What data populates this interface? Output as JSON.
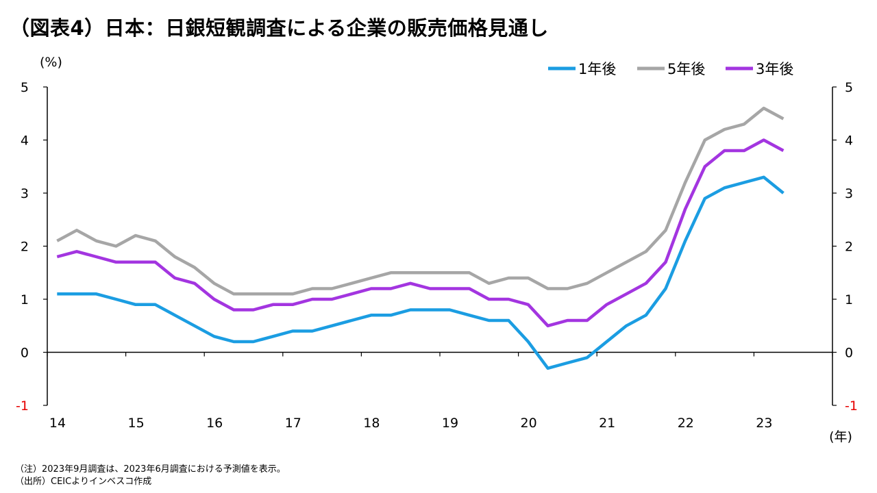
{
  "title": "（図表4）日本：日銀短観調査による企業の販売価格見通し",
  "notes": {
    "note": "（注）2023年9月調査は、2023年6月調査における予測値を表示。",
    "source": "（出所）CEICよりインベスコ作成"
  },
  "chart_data": {
    "type": "line",
    "title": "（図表4）日本：日銀短観調査による企業の販売価格見通し",
    "ylabel": "(%)",
    "xlabel": "(年)",
    "ylim": [
      -1,
      5
    ],
    "yticks": [
      -1,
      0,
      1,
      2,
      3,
      4,
      5
    ],
    "negative_tick_color": "#E60000",
    "x_start": 2014.0,
    "x_step": 0.25,
    "xlim": [
      2014.0,
      2024.0
    ],
    "xtick_labels": [
      "14",
      "15",
      "16",
      "17",
      "18",
      "19",
      "20",
      "21",
      "22",
      "23"
    ],
    "legend_position": "top-right",
    "grid": false,
    "series": [
      {
        "name": "1年後",
        "color": "#1B9DE2",
        "values": [
          1.1,
          1.1,
          1.1,
          1.0,
          0.9,
          0.9,
          0.7,
          0.5,
          0.3,
          0.2,
          0.2,
          0.3,
          0.4,
          0.4,
          0.5,
          0.6,
          0.7,
          0.7,
          0.8,
          0.8,
          0.8,
          0.7,
          0.6,
          0.6,
          0.2,
          -0.3,
          -0.2,
          -0.1,
          0.2,
          0.5,
          0.7,
          1.2,
          2.1,
          2.9,
          3.1,
          3.2,
          3.3,
          3.0
        ]
      },
      {
        "name": "5年後",
        "color": "#A6A6A6",
        "values": [
          2.1,
          2.3,
          2.1,
          2.0,
          2.2,
          2.1,
          1.8,
          1.6,
          1.3,
          1.1,
          1.1,
          1.1,
          1.1,
          1.2,
          1.2,
          1.3,
          1.4,
          1.5,
          1.5,
          1.5,
          1.5,
          1.5,
          1.3,
          1.4,
          1.4,
          1.2,
          1.2,
          1.3,
          1.5,
          1.7,
          1.9,
          2.3,
          3.2,
          4.0,
          4.2,
          4.3,
          4.6,
          4.4
        ]
      },
      {
        "name": "3年後",
        "color": "#A335E0",
        "values": [
          1.8,
          1.9,
          1.8,
          1.7,
          1.7,
          1.7,
          1.4,
          1.3,
          1.0,
          0.8,
          0.8,
          0.9,
          0.9,
          1.0,
          1.0,
          1.1,
          1.2,
          1.2,
          1.3,
          1.2,
          1.2,
          1.2,
          1.0,
          1.0,
          0.9,
          0.5,
          0.6,
          0.6,
          0.9,
          1.1,
          1.3,
          1.7,
          2.7,
          3.5,
          3.8,
          3.8,
          4.0,
          3.8
        ]
      }
    ]
  }
}
